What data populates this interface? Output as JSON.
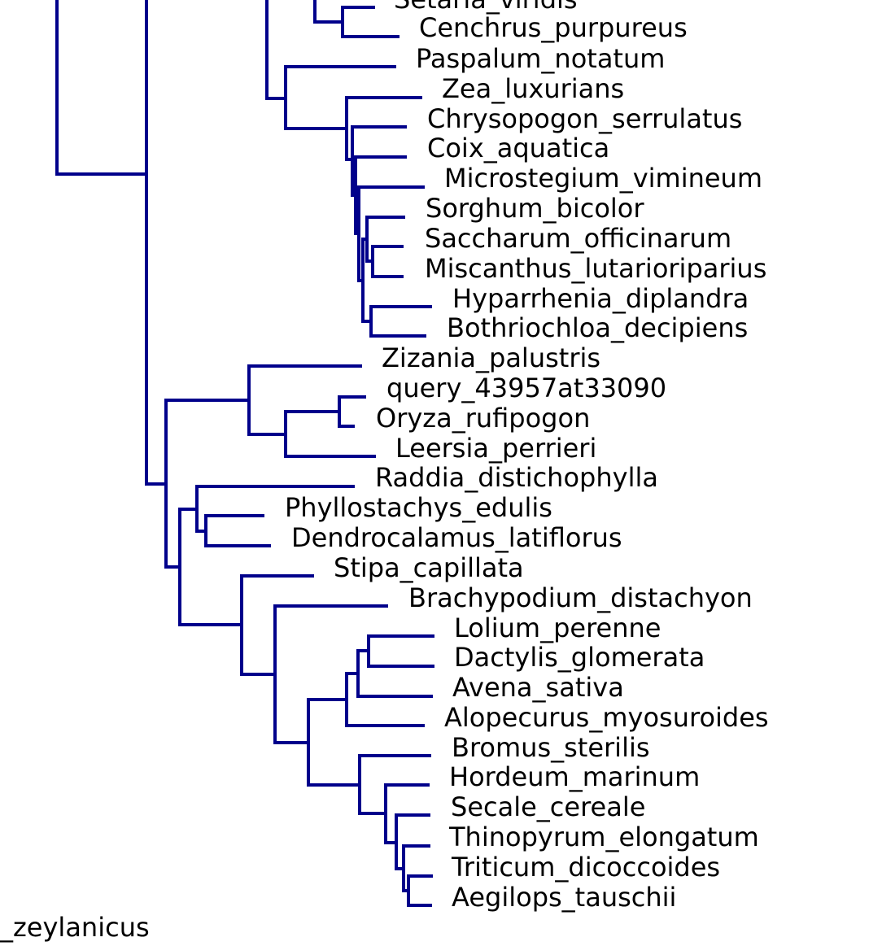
{
  "tree": {
    "branch_color": "#00008b",
    "label_color": "#000000",
    "leaves": [
      {
        "id": "setaria_viridis",
        "label": "Setaria_viridis"
      },
      {
        "id": "cenchrus_purpureus",
        "label": "Cenchrus_purpureus"
      },
      {
        "id": "paspalum_notatum",
        "label": "Paspalum_notatum"
      },
      {
        "id": "zea_luxurians",
        "label": "Zea_luxurians"
      },
      {
        "id": "chrysopogon_serrulatus",
        "label": "Chrysopogon_serrulatus"
      },
      {
        "id": "coix_aquatica",
        "label": "Coix_aquatica"
      },
      {
        "id": "microstegium_vimineum",
        "label": "Microstegium_vimineum"
      },
      {
        "id": "sorghum_bicolor",
        "label": "Sorghum_bicolor"
      },
      {
        "id": "saccharum_officinarum",
        "label": "Saccharum_officinarum"
      },
      {
        "id": "miscanthus_lutarioriparius",
        "label": "Miscanthus_lutarioriparius"
      },
      {
        "id": "hyparrhenia_diplandra",
        "label": "Hyparrhenia_diplandra"
      },
      {
        "id": "bothriochloa_decipiens",
        "label": "Bothriochloa_decipiens"
      },
      {
        "id": "zizania_palustris",
        "label": "Zizania_palustris"
      },
      {
        "id": "query_43957at33090",
        "label": "query_43957at33090"
      },
      {
        "id": "oryza_rufipogon",
        "label": "Oryza_rufipogon"
      },
      {
        "id": "leersia_perrieri",
        "label": "Leersia_perrieri"
      },
      {
        "id": "raddia_distichophylla",
        "label": "Raddia_distichophylla"
      },
      {
        "id": "phyllostachys_edulis",
        "label": "Phyllostachys_edulis"
      },
      {
        "id": "dendrocalamus_latiflorus",
        "label": "Dendrocalamus_latiflorus"
      },
      {
        "id": "stipa_capillata",
        "label": "Stipa_capillata"
      },
      {
        "id": "brachypodium_distachyon",
        "label": "Brachypodium_distachyon"
      },
      {
        "id": "lolium_perenne",
        "label": "Lolium_perenne"
      },
      {
        "id": "dactylis_glomerata",
        "label": "Dactylis_glomerata"
      },
      {
        "id": "avena_sativa",
        "label": "Avena_sativa"
      },
      {
        "id": "alopecurus_myosuroides",
        "label": "Alopecurus_myosuroides"
      },
      {
        "id": "bromus_sterilis",
        "label": "Bromus_sterilis"
      },
      {
        "id": "hordeum_marinum",
        "label": "Hordeum_marinum"
      },
      {
        "id": "secale_cereale",
        "label": "Secale_cereale"
      },
      {
        "id": "thinopyrum_elongatum",
        "label": "Thinopyrum_elongatum"
      },
      {
        "id": "triticum_dicoccoides",
        "label": "Triticum_dicoccoides"
      },
      {
        "id": "aegilops_tauschii",
        "label": "Aegilops_tauschii"
      },
      {
        "id": "zeylanicus",
        "label": "_zeylanicus"
      }
    ]
  }
}
